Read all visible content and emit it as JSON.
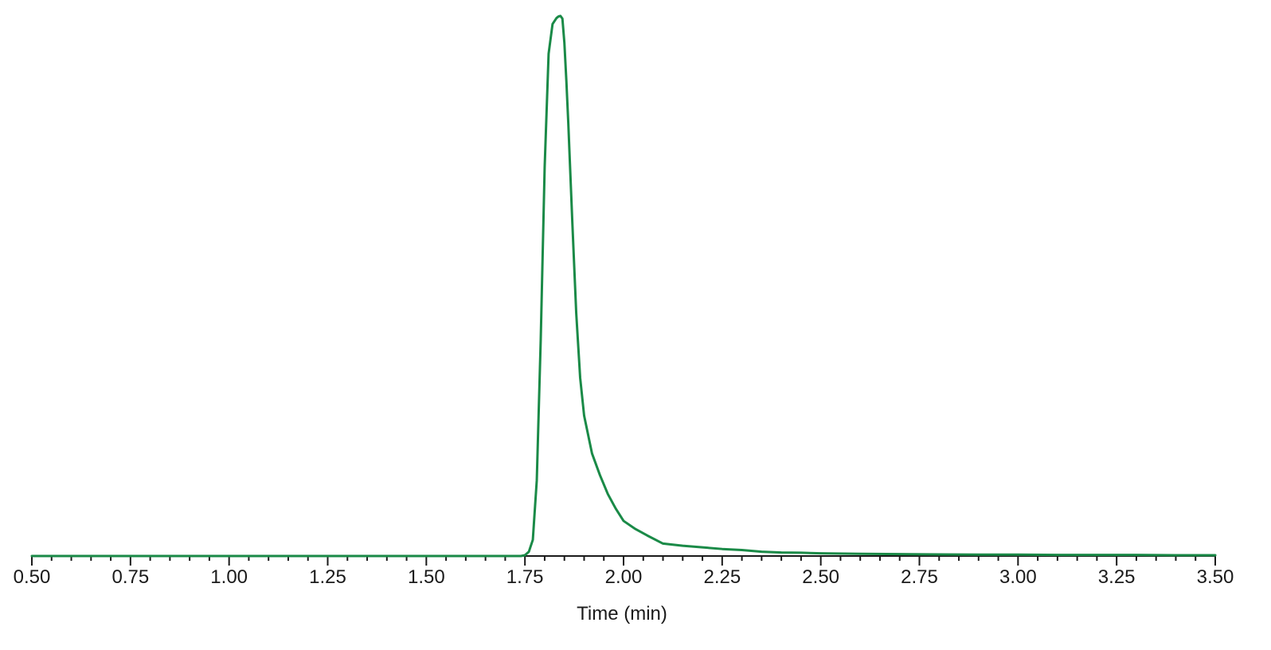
{
  "chart_data": {
    "type": "line",
    "title": "",
    "xlabel": "Time (min)",
    "ylabel": "",
    "xlim": [
      0.5,
      3.5
    ],
    "ylim": [
      0,
      100
    ],
    "grid": false,
    "x_ticks": [
      "0.50",
      "0.75",
      "1.00",
      "1.25",
      "1.50",
      "1.75",
      "2.00",
      "2.25",
      "2.50",
      "2.75",
      "3.00",
      "3.25",
      "3.50"
    ],
    "colors": {
      "series": "#1a8a47",
      "axis": "#1a1a1a"
    },
    "series": [
      {
        "x": [
          0.5,
          1.0,
          1.5,
          1.74,
          1.75,
          1.76,
          1.77,
          1.78,
          1.79,
          1.8,
          1.81,
          1.82,
          1.83,
          1.835,
          1.84,
          1.845,
          1.85,
          1.855,
          1.86,
          1.87,
          1.88,
          1.89,
          1.9,
          1.92,
          1.94,
          1.96,
          1.98,
          2.0,
          2.03,
          2.06,
          2.1,
          2.15,
          2.2,
          2.25,
          2.3,
          2.35,
          2.4,
          2.45,
          2.5,
          2.6,
          2.7,
          2.8,
          2.9,
          3.0,
          3.1,
          3.2,
          3.3,
          3.4,
          3.5
        ],
        "y": [
          0,
          0,
          0,
          0,
          0.15,
          0.8,
          3,
          14,
          40,
          72,
          93,
          98.5,
          99.6,
          99.9,
          100,
          99.5,
          95,
          88,
          80,
          62,
          45,
          33,
          26,
          19,
          15,
          11.5,
          8.8,
          6.5,
          5.0,
          3.8,
          2.3,
          1.9,
          1.6,
          1.3,
          1.1,
          0.8,
          0.65,
          0.6,
          0.5,
          0.4,
          0.35,
          0.3,
          0.25,
          0.25,
          0.2,
          0.2,
          0.2,
          0.15,
          0.15
        ]
      }
    ]
  }
}
